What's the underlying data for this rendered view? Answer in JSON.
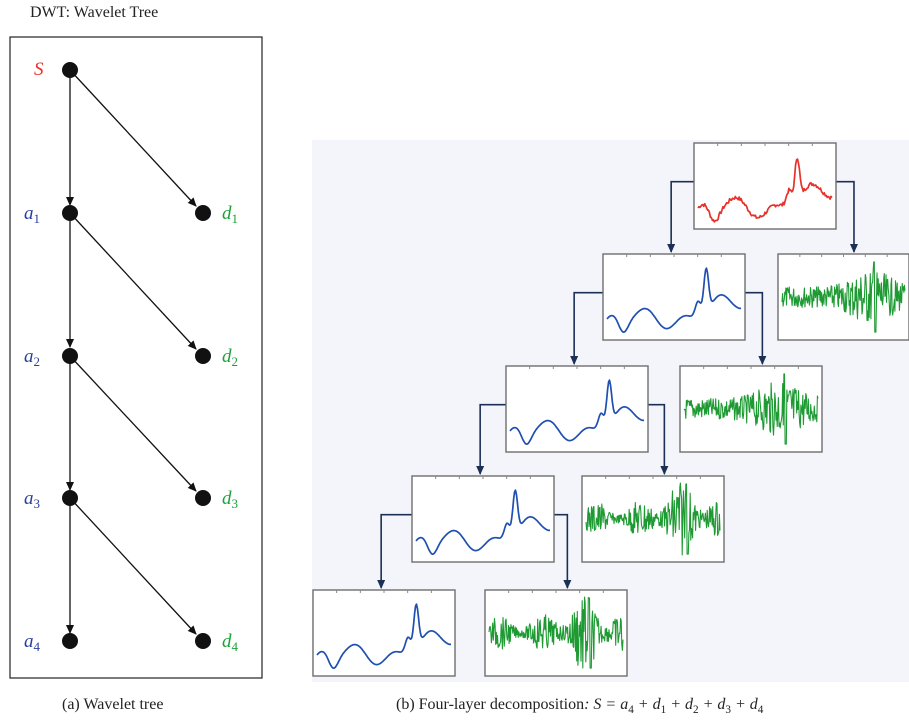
{
  "title": "DWT: Wavelet Tree",
  "tree": {
    "root_label": "S",
    "approx_labels": [
      "a",
      "a",
      "a",
      "a"
    ],
    "approx_subs": [
      "1",
      "2",
      "3",
      "4"
    ],
    "detail_labels": [
      "d",
      "d",
      "d",
      "d"
    ],
    "detail_subs": [
      "1",
      "2",
      "3",
      "4"
    ]
  },
  "captions": {
    "a": "(a) Wavelet tree",
    "b_prefix": "(b) Four-layer decomposition",
    "b_colon": ":",
    "b_eq": "S = a",
    "b_s4": "4",
    "b_p1": " + d",
    "b_s1": "1",
    "b_p2": " + d",
    "b_s2": "2",
    "b_p3": " + d",
    "b_s3": "3",
    "b_p4": " + d",
    "b_s4b": "4"
  },
  "colors": {
    "signal": "#e8312a",
    "approx": "#1f4fb0",
    "detail": "#1e9a33",
    "approx_label": "#2a3f9a",
    "detail_label": "#1aa23a",
    "panel_bg": "#f3f5fa",
    "node": "#111111"
  }
}
